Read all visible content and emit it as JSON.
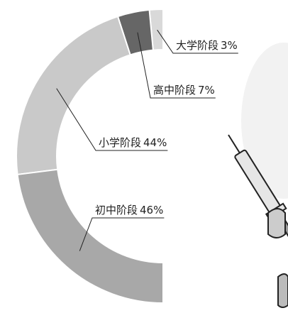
{
  "chart_data": {
    "type": "donut",
    "categories": [
      "大学阶段",
      "高中阶段",
      "小学阶段",
      "初中阶段"
    ],
    "values": [
      3,
      7,
      44,
      46
    ],
    "value_labels": [
      "3%",
      "7%",
      "44%",
      "46%"
    ],
    "colors": [
      "#d9d9d9",
      "#666666",
      "#c9c9c9",
      "#a8a8a8"
    ]
  }
}
